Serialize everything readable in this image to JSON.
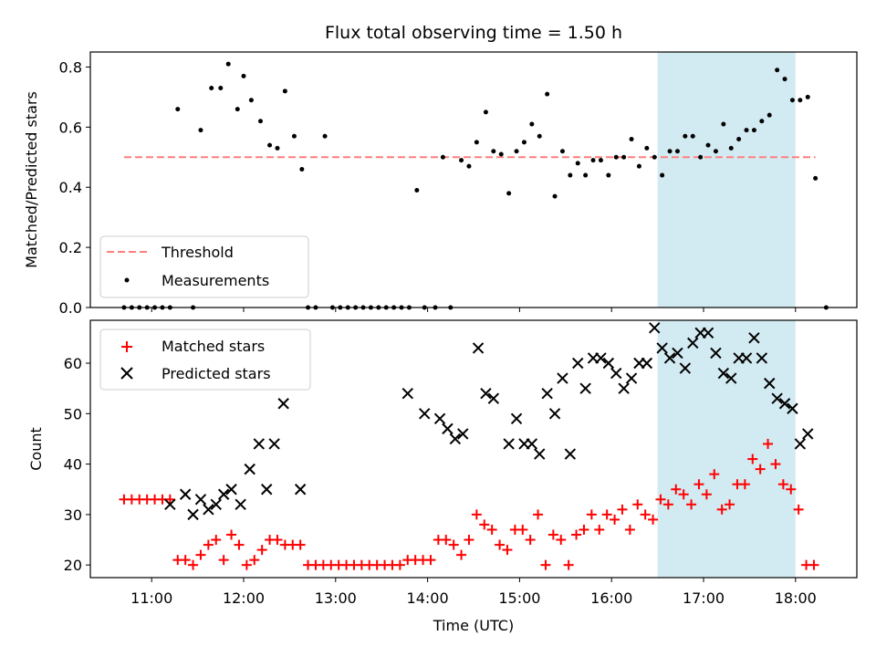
{
  "colors": {
    "threshold": "#ff7f7f",
    "measurement": "#000000",
    "matched": "#ff0000",
    "predicted": "#000000",
    "highlight": "#add8e6"
  },
  "chart_data": [
    {
      "type": "scatter",
      "title": "Flux total observing time = 1.50 h",
      "xlabel": "",
      "ylabel": "Matched/Predicted stars",
      "xlim": [
        "10:20",
        "18:40"
      ],
      "ylim": [
        0.0,
        0.85
      ],
      "y_ticks": [
        "0.0",
        "0.2",
        "0.4",
        "0.6",
        "0.8"
      ],
      "x_tick_values": [
        "11:00",
        "12:00",
        "13:00",
        "14:00",
        "15:00",
        "16:00",
        "17:00",
        "18:00"
      ],
      "highlight_span": [
        "16:30",
        "18:00"
      ],
      "grid": false,
      "legend_position": "lower-left",
      "legend": [
        "Threshold",
        "Measurements"
      ],
      "threshold": 0.5,
      "series": [
        {
          "name": "Measurements",
          "points": [
            [
              "10:42",
              0
            ],
            [
              "10:47",
              0
            ],
            [
              "10:52",
              0
            ],
            [
              "10:57",
              0
            ],
            [
              "11:02",
              0
            ],
            [
              "11:07",
              0
            ],
            [
              "11:12",
              0
            ],
            [
              "11:17",
              0.66
            ],
            [
              "11:27",
              0
            ],
            [
              "11:32",
              0.59
            ],
            [
              "11:39",
              0.73
            ],
            [
              "11:45",
              0.73
            ],
            [
              "11:50",
              0.81
            ],
            [
              "11:56",
              0.66
            ],
            [
              "12:00",
              0.77
            ],
            [
              "12:05",
              0.69
            ],
            [
              "12:11",
              0.62
            ],
            [
              "12:17",
              0.54
            ],
            [
              "12:22",
              0.53
            ],
            [
              "12:27",
              0.72
            ],
            [
              "12:33",
              0.57
            ],
            [
              "12:38",
              0.46
            ],
            [
              "12:42",
              0
            ],
            [
              "12:47",
              0
            ],
            [
              "12:53",
              0.57
            ],
            [
              "12:58",
              0
            ],
            [
              "13:03",
              0
            ],
            [
              "13:08",
              0
            ],
            [
              "13:13",
              0
            ],
            [
              "13:18",
              0
            ],
            [
              "13:23",
              0
            ],
            [
              "13:28",
              0
            ],
            [
              "13:33",
              0
            ],
            [
              "13:38",
              0
            ],
            [
              "13:43",
              0
            ],
            [
              "13:48",
              0
            ],
            [
              "13:53",
              0.39
            ],
            [
              "13:58",
              0
            ],
            [
              "14:05",
              0
            ],
            [
              "14:10",
              0.5
            ],
            [
              "14:15",
              0
            ],
            [
              "14:22",
              0.49
            ],
            [
              "14:27",
              0.47
            ],
            [
              "14:32",
              0.55
            ],
            [
              "14:38",
              0.65
            ],
            [
              "14:43",
              0.52
            ],
            [
              "14:48",
              0.51
            ],
            [
              "14:53",
              0.38
            ],
            [
              "14:58",
              0.52
            ],
            [
              "15:03",
              0.55
            ],
            [
              "15:08",
              0.61
            ],
            [
              "15:13",
              0.57
            ],
            [
              "15:18",
              0.71
            ],
            [
              "15:23",
              0.37
            ],
            [
              "15:28",
              0.52
            ],
            [
              "15:33",
              0.44
            ],
            [
              "15:38",
              0.48
            ],
            [
              "15:43",
              0.44
            ],
            [
              "15:48",
              0.49
            ],
            [
              "15:53",
              0.49
            ],
            [
              "15:58",
              0.44
            ],
            [
              "16:03",
              0.5
            ],
            [
              "16:08",
              0.5
            ],
            [
              "16:13",
              0.56
            ],
            [
              "16:18",
              0.47
            ],
            [
              "16:23",
              0.53
            ],
            [
              "16:28",
              0.5
            ],
            [
              "16:33",
              0.44
            ],
            [
              "16:38",
              0.52
            ],
            [
              "16:43",
              0.52
            ],
            [
              "16:48",
              0.57
            ],
            [
              "16:53",
              0.57
            ],
            [
              "16:58",
              0.5
            ],
            [
              "17:03",
              0.54
            ],
            [
              "17:08",
              0.52
            ],
            [
              "17:13",
              0.61
            ],
            [
              "17:18",
              0.53
            ],
            [
              "17:23",
              0.56
            ],
            [
              "17:28",
              0.59
            ],
            [
              "17:33",
              0.59
            ],
            [
              "17:38",
              0.62
            ],
            [
              "17:43",
              0.64
            ],
            [
              "17:48",
              0.79
            ],
            [
              "17:53",
              0.76
            ],
            [
              "17:58",
              0.69
            ],
            [
              "18:03",
              0.69
            ],
            [
              "18:08",
              0.7
            ],
            [
              "18:13",
              0.43
            ],
            [
              "18:20",
              0
            ]
          ]
        }
      ]
    },
    {
      "type": "scatter",
      "title": "",
      "xlabel": "Time (UTC)",
      "ylabel": "Count",
      "xlim": [
        "10:20",
        "18:40"
      ],
      "ylim": [
        17.5,
        68.5
      ],
      "y_ticks": [
        "20",
        "30",
        "40",
        "50",
        "60"
      ],
      "x_ticks": [
        "11:00",
        "12:00",
        "13:00",
        "14:00",
        "15:00",
        "16:00",
        "17:00",
        "18:00"
      ],
      "highlight_span": [
        "16:30",
        "18:00"
      ],
      "grid": false,
      "legend_position": "upper-left",
      "legend": [
        "Matched stars",
        "Predicted stars"
      ],
      "series": [
        {
          "name": "Matched stars",
          "marker": "+",
          "points": [
            [
              "10:42",
              33
            ],
            [
              "10:47",
              33
            ],
            [
              "10:52",
              33
            ],
            [
              "10:57",
              33
            ],
            [
              "11:02",
              33
            ],
            [
              "11:07",
              33
            ],
            [
              "11:12",
              33
            ],
            [
              "11:17",
              21
            ],
            [
              "11:22",
              21
            ],
            [
              "11:27",
              20
            ],
            [
              "11:32",
              22
            ],
            [
              "11:37",
              24
            ],
            [
              "11:42",
              25
            ],
            [
              "11:47",
              21
            ],
            [
              "11:52",
              26
            ],
            [
              "11:57",
              24
            ],
            [
              "12:02",
              20
            ],
            [
              "12:07",
              21
            ],
            [
              "12:12",
              23
            ],
            [
              "12:17",
              25
            ],
            [
              "12:22",
              25
            ],
            [
              "12:27",
              24
            ],
            [
              "12:32",
              24
            ],
            [
              "12:37",
              24
            ],
            [
              "12:42",
              20
            ],
            [
              "12:47",
              20
            ],
            [
              "12:52",
              20
            ],
            [
              "12:57",
              20
            ],
            [
              "13:02",
              20
            ],
            [
              "13:07",
              20
            ],
            [
              "13:12",
              20
            ],
            [
              "13:17",
              20
            ],
            [
              "13:22",
              20
            ],
            [
              "13:27",
              20
            ],
            [
              "13:32",
              20
            ],
            [
              "13:37",
              20
            ],
            [
              "13:42",
              20
            ],
            [
              "13:47",
              21
            ],
            [
              "13:52",
              21
            ],
            [
              "13:57",
              21
            ],
            [
              "14:02",
              21
            ],
            [
              "14:07",
              25
            ],
            [
              "14:12",
              25
            ],
            [
              "14:17",
              24
            ],
            [
              "14:22",
              22
            ],
            [
              "14:27",
              25
            ],
            [
              "14:32",
              30
            ],
            [
              "14:37",
              28
            ],
            [
              "14:42",
              27
            ],
            [
              "14:47",
              24
            ],
            [
              "14:52",
              23
            ],
            [
              "14:57",
              27
            ],
            [
              "15:02",
              27
            ],
            [
              "15:07",
              25
            ],
            [
              "15:12",
              30
            ],
            [
              "15:17",
              20
            ],
            [
              "15:22",
              26
            ],
            [
              "15:27",
              25
            ],
            [
              "15:32",
              20
            ],
            [
              "15:37",
              26
            ],
            [
              "15:42",
              27
            ],
            [
              "15:47",
              30
            ],
            [
              "15:52",
              27
            ],
            [
              "15:57",
              30
            ],
            [
              "16:02",
              29
            ],
            [
              "16:07",
              31
            ],
            [
              "16:12",
              27
            ],
            [
              "16:17",
              32
            ],
            [
              "16:22",
              30
            ],
            [
              "16:27",
              29
            ],
            [
              "16:32",
              33
            ],
            [
              "16:37",
              32
            ],
            [
              "16:42",
              35
            ],
            [
              "16:47",
              34
            ],
            [
              "16:52",
              32
            ],
            [
              "16:57",
              36
            ],
            [
              "17:02",
              34
            ],
            [
              "17:07",
              38
            ],
            [
              "17:12",
              31
            ],
            [
              "17:17",
              32
            ],
            [
              "17:22",
              36
            ],
            [
              "17:27",
              36
            ],
            [
              "17:32",
              41
            ],
            [
              "17:37",
              39
            ],
            [
              "17:42",
              44
            ],
            [
              "17:47",
              40
            ],
            [
              "17:52",
              36
            ],
            [
              "17:57",
              35
            ],
            [
              "18:02",
              31
            ],
            [
              "18:07",
              20
            ],
            [
              "18:12",
              20
            ]
          ]
        },
        {
          "name": "Predicted stars",
          "marker": "x",
          "points": [
            [
              "11:12",
              32
            ],
            [
              "11:22",
              34
            ],
            [
              "11:27",
              30
            ],
            [
              "11:32",
              33
            ],
            [
              "11:37",
              31
            ],
            [
              "11:42",
              32
            ],
            [
              "11:47",
              34
            ],
            [
              "11:52",
              35
            ],
            [
              "11:58",
              32
            ],
            [
              "12:04",
              39
            ],
            [
              "12:10",
              44
            ],
            [
              "12:15",
              35
            ],
            [
              "12:20",
              44
            ],
            [
              "12:26",
              52
            ],
            [
              "12:37",
              35
            ],
            [
              "13:47",
              54
            ],
            [
              "13:58",
              50
            ],
            [
              "14:08",
              49
            ],
            [
              "14:13",
              47
            ],
            [
              "14:18",
              45
            ],
            [
              "14:23",
              46
            ],
            [
              "14:33",
              63
            ],
            [
              "14:38",
              54
            ],
            [
              "14:43",
              53
            ],
            [
              "14:53",
              44
            ],
            [
              "14:58",
              49
            ],
            [
              "15:03",
              44
            ],
            [
              "15:08",
              44
            ],
            [
              "15:13",
              42
            ],
            [
              "15:18",
              54
            ],
            [
              "15:23",
              50
            ],
            [
              "15:28",
              57
            ],
            [
              "15:33",
              42
            ],
            [
              "15:38",
              60
            ],
            [
              "15:43",
              55
            ],
            [
              "15:48",
              61
            ],
            [
              "15:53",
              61
            ],
            [
              "15:58",
              60
            ],
            [
              "16:03",
              58
            ],
            [
              "16:08",
              55
            ],
            [
              "16:13",
              57
            ],
            [
              "16:18",
              60
            ],
            [
              "16:23",
              60
            ],
            [
              "16:28",
              67
            ],
            [
              "16:33",
              63
            ],
            [
              "16:38",
              61
            ],
            [
              "16:43",
              62
            ],
            [
              "16:48",
              59
            ],
            [
              "16:53",
              64
            ],
            [
              "16:58",
              66
            ],
            [
              "17:03",
              66
            ],
            [
              "17:08",
              62
            ],
            [
              "17:13",
              58
            ],
            [
              "17:18",
              57
            ],
            [
              "17:23",
              61
            ],
            [
              "17:28",
              61
            ],
            [
              "17:33",
              65
            ],
            [
              "17:38",
              61
            ],
            [
              "17:43",
              56
            ],
            [
              "17:48",
              53
            ],
            [
              "17:53",
              52
            ],
            [
              "17:58",
              51
            ],
            [
              "18:03",
              44
            ],
            [
              "18:08",
              46
            ]
          ]
        }
      ]
    }
  ]
}
